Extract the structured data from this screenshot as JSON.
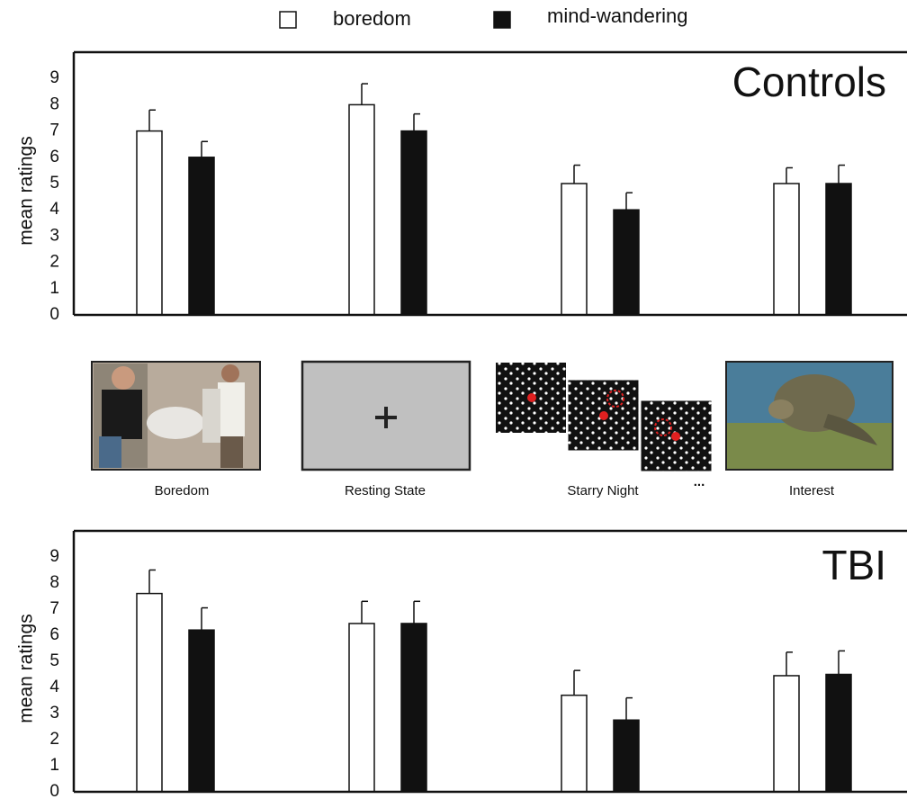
{
  "chart_data": [
    {
      "type": "bar",
      "title": "Controls",
      "y_label": "mean ratings",
      "categories": [
        "Boredom",
        "Resting State",
        "Starry Night",
        "Interest"
      ],
      "ylim": [
        0,
        10
      ],
      "yticks": [
        0,
        1,
        2,
        3,
        4,
        5,
        6,
        7,
        8,
        9
      ],
      "series": [
        {
          "name": "boredom",
          "color": "#ffffff",
          "values": [
            7.0,
            8.0,
            5.0,
            5.0
          ],
          "errors": [
            0.8,
            0.8,
            0.7,
            0.6
          ]
        },
        {
          "name": "mind-wandering",
          "color": "#111111",
          "values": [
            6.0,
            7.0,
            4.0,
            5.0
          ],
          "errors": [
            0.6,
            0.65,
            0.65,
            0.7
          ]
        }
      ]
    },
    {
      "type": "bar",
      "title": "TBI",
      "y_label": "mean ratings",
      "ylim": [
        0,
        10
      ],
      "yticks": [
        0,
        1,
        2,
        3,
        4,
        5,
        6,
        7,
        8,
        9
      ],
      "series": [
        {
          "name": "boredom",
          "color": "#ffffff",
          "values": [
            7.6,
            6.45,
            3.7,
            4.45
          ],
          "errors": [
            0.9,
            0.85,
            0.95,
            0.9
          ]
        },
        {
          "name": "mind-wandering",
          "color": "#111111",
          "values": [
            6.2,
            6.45,
            2.75,
            4.5
          ],
          "errors": [
            0.85,
            0.85,
            0.85,
            0.9
          ]
        }
      ]
    }
  ],
  "stimuli_note": "..."
}
